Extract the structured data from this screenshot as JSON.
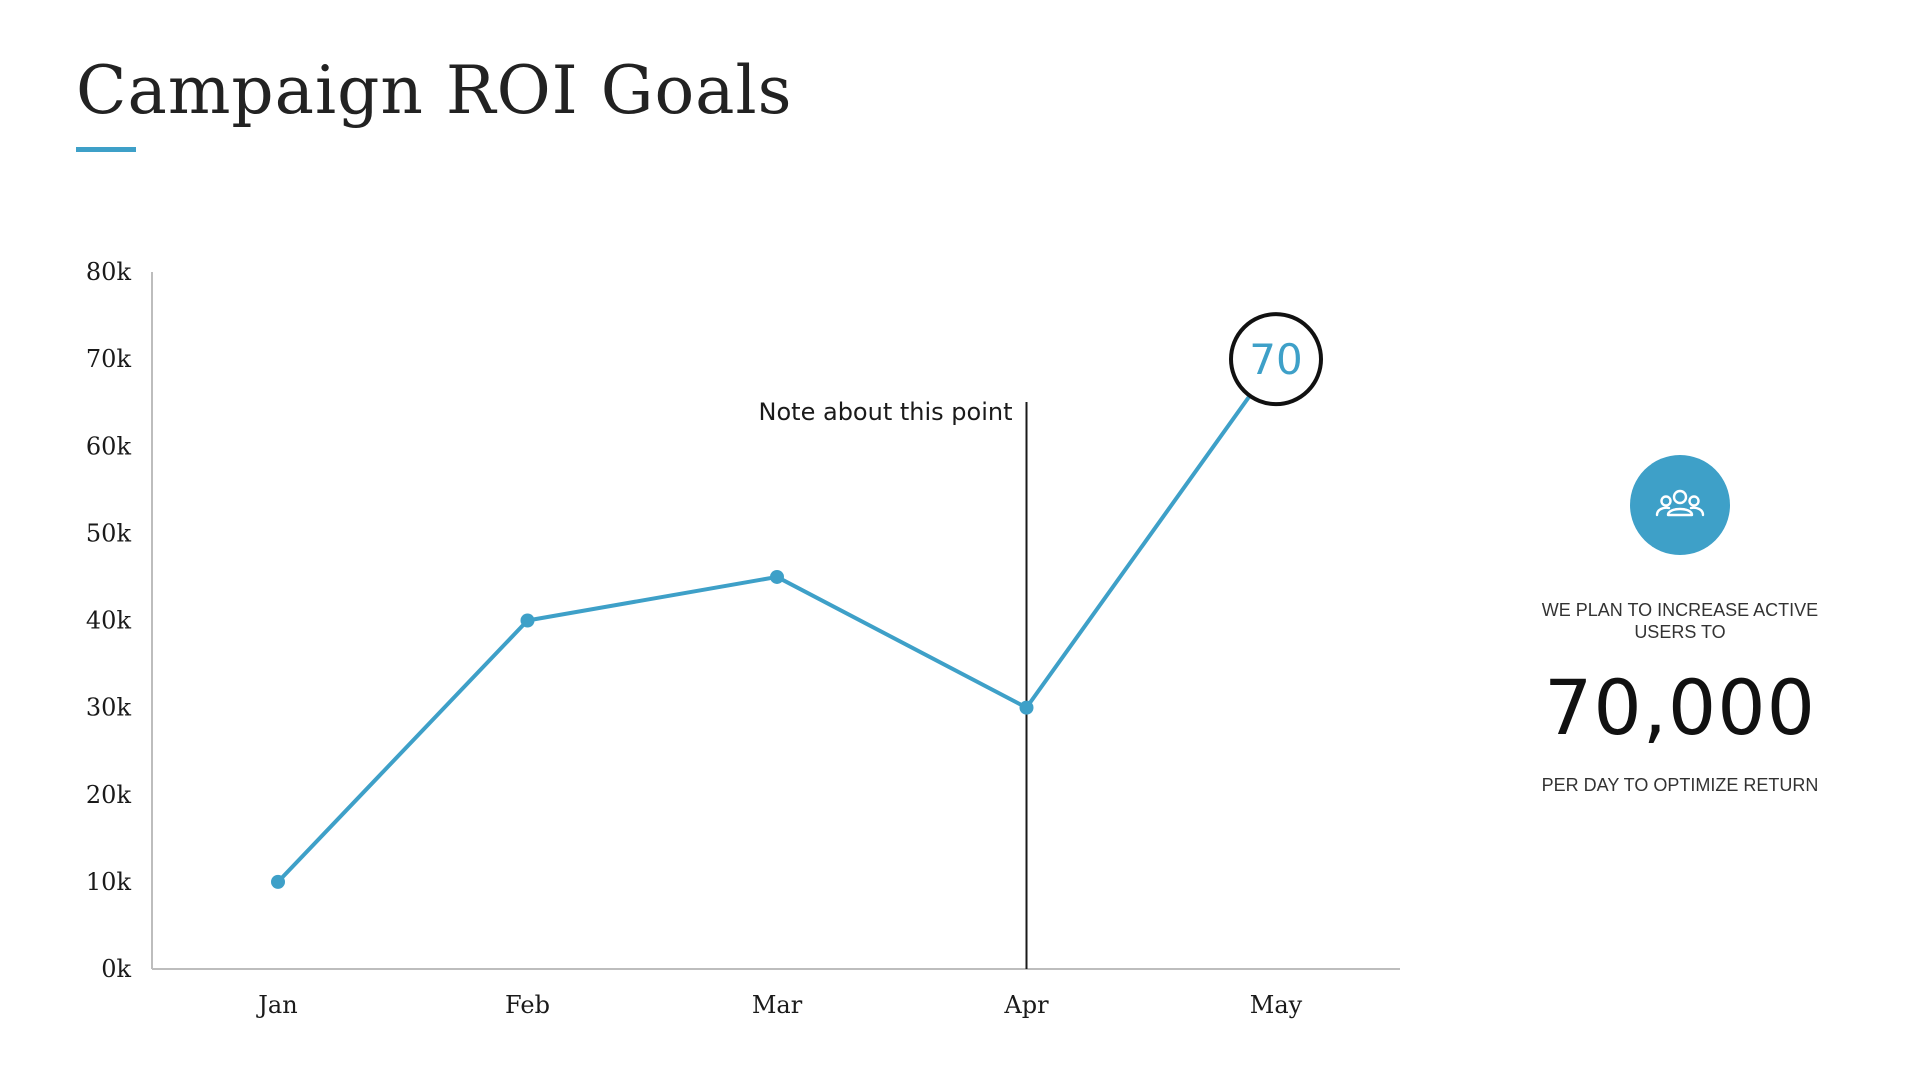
{
  "title": "Campaign ROI Goals",
  "colors": {
    "accent": "#3ea0c8",
    "axis": "#bdbdbd",
    "text": "#1a1a1a"
  },
  "chart_data": {
    "type": "line",
    "categories": [
      "Jan",
      "Feb",
      "Mar",
      "Apr",
      "May"
    ],
    "series": [
      {
        "values": [
          10,
          40,
          45,
          30,
          70
        ]
      }
    ],
    "y_tick_labels": [
      "0k",
      "10k",
      "20k",
      "30k",
      "40k",
      "50k",
      "60k",
      "70k",
      "80k"
    ],
    "ylim": [
      0,
      80
    ],
    "grid": false,
    "legend": "none",
    "annotation": {
      "category": "Apr",
      "text": "Note about this point"
    },
    "highlight": {
      "category": "May",
      "label": "70"
    }
  },
  "kpi": {
    "icon": "users-group-icon",
    "lead": "WE PLAN TO INCREASE ACTIVE USERS TO",
    "value": "70,000",
    "tail": "PER DAY TO OPTIMIZE RETURN"
  }
}
